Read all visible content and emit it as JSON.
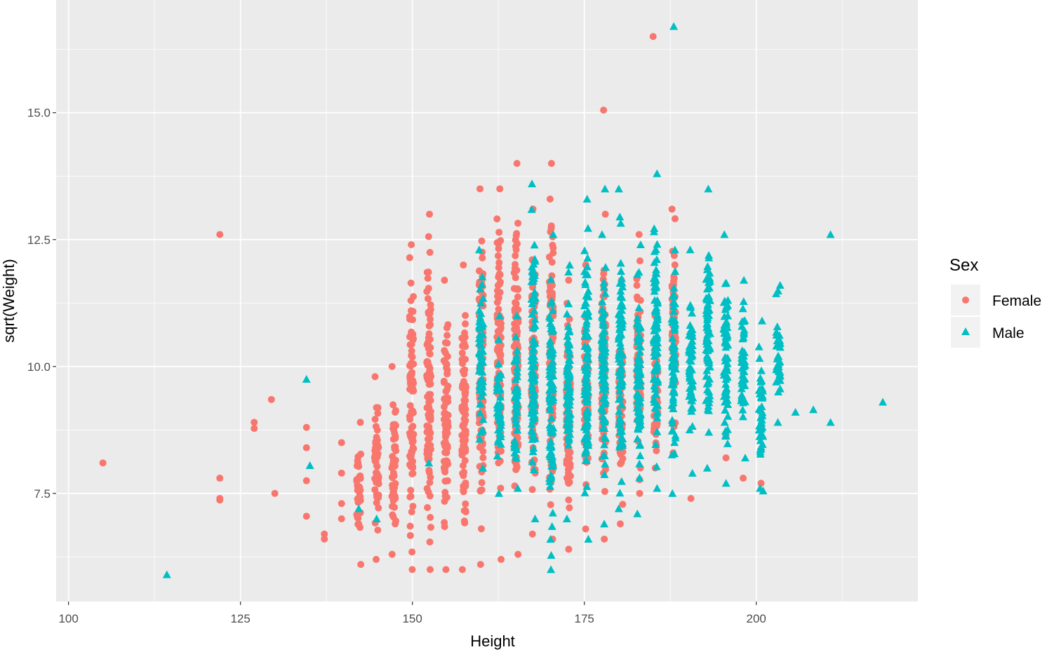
{
  "chart_data": {
    "type": "scatter",
    "title": "",
    "xlabel": "Height",
    "ylabel": "sqrt(Weight)",
    "xlim": [
      98.2,
      223.5
    ],
    "ylim": [
      5.37,
      17.22
    ],
    "x_ticks": [
      100,
      125,
      150,
      175,
      200
    ],
    "x_tick_labels": [
      "100",
      "125",
      "150",
      "175",
      "200"
    ],
    "y_ticks": [
      7.5,
      10.0,
      12.5,
      15.0
    ],
    "y_tick_labels": [
      "7.5",
      "10.0",
      "12.5",
      "15.0"
    ],
    "grid": true,
    "legend": {
      "title": "Sex",
      "placement": "right",
      "entries": [
        {
          "label": "Female",
          "shape": "circle",
          "color": "#F8766D"
        },
        {
          "label": "Male",
          "shape": "triangle",
          "color": "#00BFC4"
        }
      ]
    },
    "series": [
      {
        "name": "Female",
        "color": "#F8766D",
        "shape": "circle",
        "column_ranges": [
          [
            142.2,
            6.1,
            8.9
          ],
          [
            144.8,
            6.2,
            9.8
          ],
          [
            147.3,
            6.3,
            10.0
          ],
          [
            149.9,
            6.0,
            12.4
          ],
          [
            152.4,
            6.0,
            13.0
          ],
          [
            154.9,
            6.0,
            11.7
          ],
          [
            157.5,
            6.0,
            12.0
          ],
          [
            160.0,
            6.1,
            13.5
          ],
          [
            162.6,
            6.2,
            13.5
          ],
          [
            165.1,
            6.3,
            14.0
          ],
          [
            167.6,
            6.7,
            13.1
          ],
          [
            170.2,
            6.6,
            14.0
          ],
          [
            172.7,
            6.4,
            11.7
          ],
          [
            175.3,
            6.8,
            12.0
          ],
          [
            177.8,
            6.6,
            13.0
          ],
          [
            180.3,
            6.9,
            11.7
          ],
          [
            182.9,
            7.5,
            12.6
          ],
          [
            185.4,
            8.0,
            11.0
          ],
          [
            188.0,
            8.3,
            13.1
          ]
        ],
        "points": [
          [
            105,
            8.1
          ],
          [
            122,
            12.6
          ],
          [
            122,
            7.8
          ],
          [
            122,
            7.4
          ],
          [
            122,
            7.37
          ],
          [
            127,
            8.9
          ],
          [
            127,
            8.78
          ],
          [
            129.5,
            9.35
          ],
          [
            130,
            7.5
          ],
          [
            134.6,
            8.8
          ],
          [
            134.6,
            8.4
          ],
          [
            134.6,
            7.75
          ],
          [
            134.6,
            7.05
          ],
          [
            137.2,
            6.6
          ],
          [
            137.2,
            6.7
          ],
          [
            139.7,
            8.5
          ],
          [
            139.7,
            7.9
          ],
          [
            139.7,
            7.3
          ],
          [
            139.7,
            7.0
          ],
          [
            185,
            16.5
          ],
          [
            177.8,
            15.05
          ],
          [
            195.6,
            8.2
          ],
          [
            195.6,
            8.65
          ],
          [
            198.1,
            7.8
          ],
          [
            200.7,
            9.5
          ],
          [
            200.7,
            7.7
          ],
          [
            190.5,
            7.4
          ]
        ]
      },
      {
        "name": "Male",
        "color": "#00BFC4",
        "shape": "triangle",
        "column_ranges": [
          [
            160.0,
            8.0,
            12.3
          ],
          [
            162.6,
            7.5,
            11.0
          ],
          [
            165.1,
            7.6,
            11.0
          ],
          [
            167.6,
            7.0,
            13.6
          ],
          [
            170.2,
            6.0,
            12.6
          ],
          [
            172.7,
            7.0,
            12.0
          ],
          [
            175.3,
            6.6,
            13.3
          ],
          [
            177.8,
            6.9,
            12.6
          ],
          [
            180.3,
            7.2,
            13.5
          ],
          [
            182.9,
            7.1,
            12.4
          ],
          [
            185.4,
            7.6,
            13.8
          ],
          [
            188.0,
            7.5,
            12.3
          ],
          [
            190.5,
            7.9,
            12.3
          ],
          [
            193.0,
            8.0,
            13.5
          ],
          [
            195.6,
            7.7,
            12.6
          ],
          [
            198.1,
            8.2,
            11.7
          ],
          [
            200.7,
            7.6,
            10.9
          ],
          [
            203.2,
            8.9,
            11.6
          ]
        ],
        "points": [
          [
            114.3,
            5.9
          ],
          [
            134.6,
            9.75
          ],
          [
            135.1,
            8.05
          ],
          [
            142.2,
            7.2
          ],
          [
            144.8,
            7.0
          ],
          [
            188,
            16.7
          ],
          [
            205.7,
            9.1
          ],
          [
            208.3,
            9.15
          ],
          [
            210.8,
            8.9
          ],
          [
            210.8,
            12.6
          ],
          [
            218.4,
            9.3
          ],
          [
            201,
            7.55
          ],
          [
            203.2,
            9.5
          ],
          [
            152.4,
            8.1
          ],
          [
            178,
            13.5
          ]
        ]
      }
    ]
  }
}
